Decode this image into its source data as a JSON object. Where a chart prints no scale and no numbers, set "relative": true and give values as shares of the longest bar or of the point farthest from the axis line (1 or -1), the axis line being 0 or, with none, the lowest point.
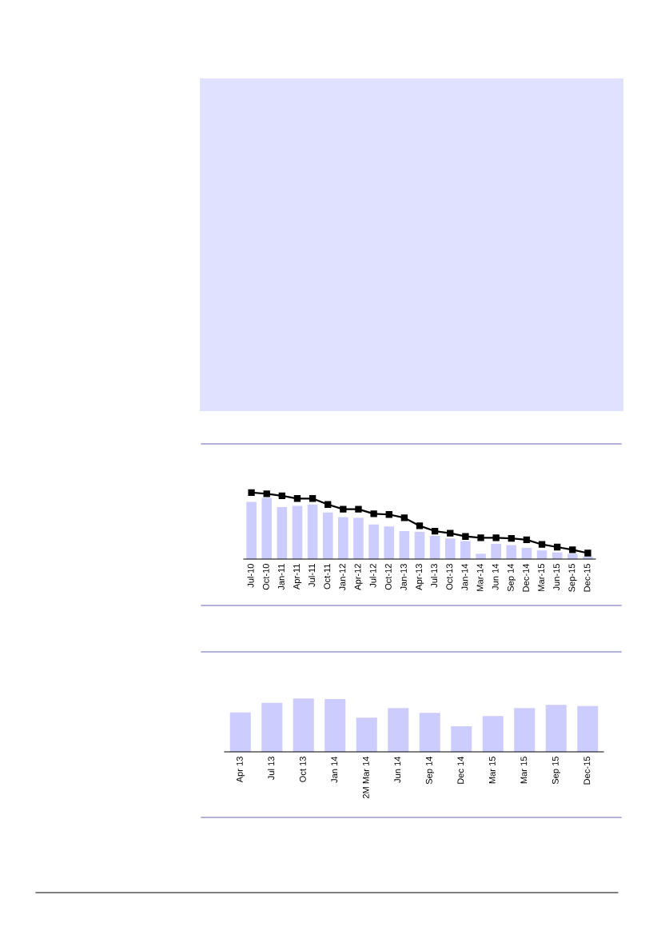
{
  "chart_data": [
    {
      "type": "bar",
      "relative": true,
      "categories": [
        "Jul-10",
        "Oct-10",
        "Jan-11",
        "Apr-11",
        "Jul-11",
        "Oct-11",
        "Jan-12",
        "Apr-12",
        "Jul-12",
        "Oct-12",
        "Jan-13",
        "Apr-13",
        "Jul-13",
        "Oct-13",
        "Jan-14",
        "Mar-14",
        "Jun 14",
        "Sep 14",
        "Dec-14",
        "Mar-15",
        "Jun-15",
        "Sep-15",
        "Dec-15"
      ],
      "series": [
        {
          "color": "#ccccff",
          "values": [
            0.86,
            0.92,
            0.78,
            0.8,
            0.82,
            0.7,
            0.63,
            0.62,
            0.52,
            0.49,
            0.42,
            0.41,
            0.35,
            0.31,
            0.27,
            0.08,
            0.23,
            0.21,
            0.17,
            0.13,
            0.1,
            0.08,
            0.04
          ]
        },
        {
          "type": "line",
          "color": "#000000",
          "marker": "square",
          "values": [
            1,
            0.98,
            0.95,
            0.91,
            0.91,
            0.82,
            0.75,
            0.75,
            0.68,
            0.67,
            0.62,
            0.5,
            0.42,
            0.39,
            0.34,
            0.32,
            0.32,
            0.31,
            0.29,
            0.22,
            0.18,
            0.14,
            0.09
          ]
        }
      ]
    },
    {
      "type": "bar",
      "relative": true,
      "categories": [
        "Apr 13",
        "Jul 13",
        "Oct 13",
        "Jan 14",
        "2M Mar 14",
        "Jun 14",
        "Sep 14",
        "Dec 14",
        "Mar 15",
        "Mar 15",
        "Sep 15",
        "Dec-15"
      ],
      "series": [
        {
          "color": "#ccccff",
          "values": [
            0.74,
            0.92,
            1,
            0.99,
            0.64,
            0.82,
            0.73,
            0.48,
            0.67,
            0.82,
            0.88,
            0.86
          ]
        }
      ]
    }
  ]
}
